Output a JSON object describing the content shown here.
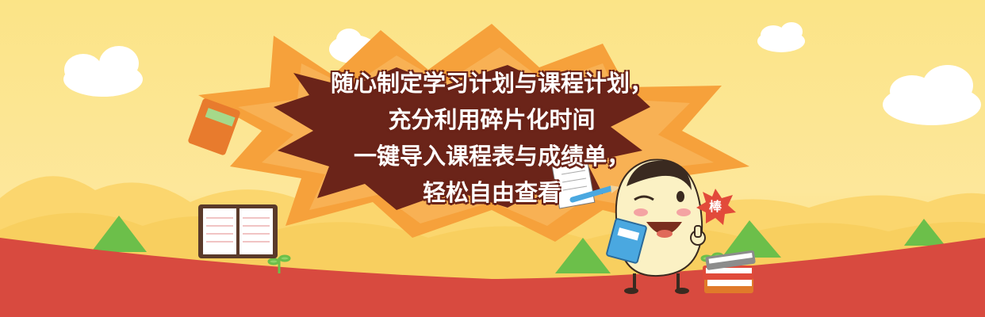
{
  "slogan": {
    "line1": "随心制定学习计划与课程计划，",
    "line2": "充分利用碎片化时间",
    "line3": "一键导入课程表与成绩单，",
    "line4": "轻松自由查看"
  },
  "badge": {
    "text": "棒"
  },
  "colors": {
    "sky": "#fbe487",
    "burst_outer": "#f6a13b",
    "burst_inner": "#6b2419",
    "ground": "#d84a3f",
    "hill": "#f9cf5c",
    "tree": "#6cbf4a"
  }
}
